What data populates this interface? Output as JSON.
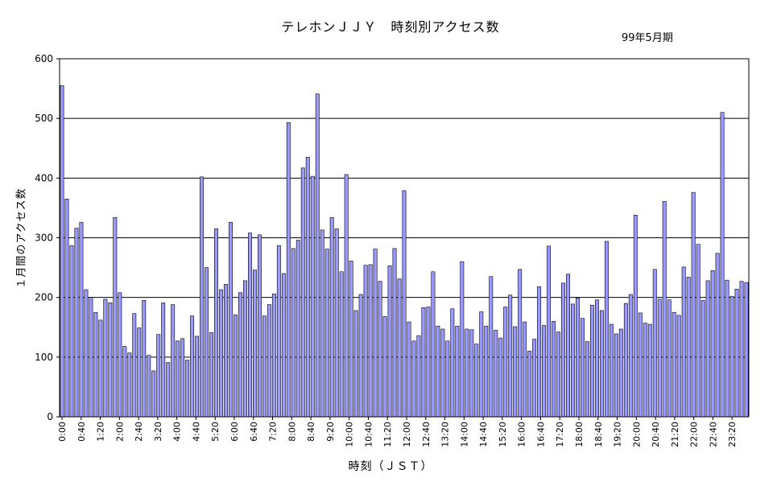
{
  "chart_data": {
    "type": "bar",
    "title": "テレホンＪＪＹ　時刻別アクセス数",
    "subtitle": "99年5月期",
    "xlabel": "時刻（ＪＳＴ）",
    "ylabel": "１月間のアクセス数",
    "ylim": [
      0,
      600
    ],
    "yticks": [
      0,
      100,
      200,
      300,
      400,
      500,
      600
    ],
    "grid": true,
    "bar_color": "#9999ff",
    "interval_minutes": 10,
    "xtick_labels": [
      "0:00",
      "0:40",
      "1:20",
      "2:00",
      "2:40",
      "3:20",
      "4:00",
      "4:40",
      "5:20",
      "6:00",
      "6:40",
      "7:20",
      "8:00",
      "8:40",
      "9:20",
      "10:00",
      "10:40",
      "11:20",
      "12:00",
      "12:40",
      "13:20",
      "14:00",
      "14:40",
      "15:20",
      "16:00",
      "16:40",
      "17:20",
      "18:00",
      "18:40",
      "19:20",
      "20:00",
      "20:40",
      "21:20",
      "22:00",
      "22:40",
      "23:20"
    ],
    "values": [
      555,
      365,
      287,
      316,
      326,
      213,
      200,
      175,
      162,
      197,
      191,
      334,
      208,
      118,
      107,
      173,
      149,
      195,
      103,
      77,
      138,
      191,
      91,
      188,
      127,
      131,
      95,
      169,
      135,
      402,
      250,
      141,
      315,
      213,
      222,
      326,
      171,
      208,
      228,
      308,
      246,
      305,
      169,
      188,
      206,
      287,
      240,
      493,
      282,
      296,
      417,
      435,
      403,
      541,
      313,
      281,
      334,
      315,
      243,
      406,
      261,
      178,
      205,
      254,
      255,
      281,
      227,
      168,
      253,
      282,
      231,
      379,
      159,
      127,
      136,
      183,
      184,
      243,
      152,
      147,
      127,
      181,
      152,
      260,
      147,
      146,
      122,
      176,
      152,
      235,
      145,
      132,
      184,
      204,
      151,
      247,
      159,
      110,
      130,
      218,
      153,
      286,
      160,
      142,
      224,
      239,
      189,
      199,
      165,
      126,
      187,
      196,
      178,
      294,
      155,
      139,
      147,
      190,
      205,
      338,
      174,
      157,
      155,
      247,
      197,
      361,
      196,
      175,
      170,
      251,
      234,
      376,
      289,
      195,
      228,
      245,
      274,
      510,
      229,
      202,
      214,
      227,
      225
    ]
  }
}
